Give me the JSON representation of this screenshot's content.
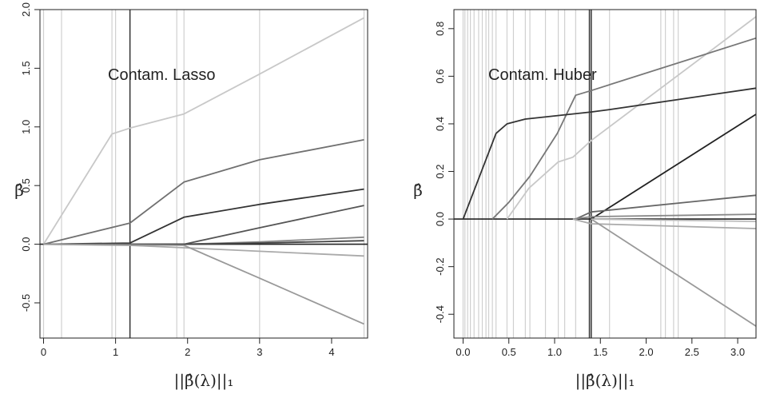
{
  "chart_data": [
    {
      "type": "line",
      "title": "Contam. Lasso",
      "xlabel": "||β̂(λ)||₁",
      "ylabel": "β̂",
      "xlim": [
        -0.05,
        4.5
      ],
      "ylim": [
        -0.8,
        2.0
      ],
      "x_ticks": [
        0,
        1,
        2,
        3,
        4
      ],
      "y_ticks": [
        -0.5,
        0.0,
        0.5,
        1.0,
        1.5,
        2.0
      ],
      "x_tick_labels": [
        "0",
        "1",
        "2",
        "3",
        "4"
      ],
      "y_tick_labels": [
        "-0.5",
        "0.0",
        "0.5",
        "1.0",
        "1.5",
        "2.0"
      ],
      "vlines_light": [
        0,
        0.25,
        0.95,
        1.0,
        1.85,
        1.95,
        3.0,
        4.45
      ],
      "vline_dark": 1.2,
      "series": [
        {
          "color": "#c8c8c8",
          "x": [
            0,
            0.95,
            1.2,
            1.95,
            3.0,
            4.45
          ],
          "y": [
            0,
            0.94,
            0.99,
            1.11,
            1.45,
            1.93
          ]
        },
        {
          "color": "#707070",
          "x": [
            0,
            1.2,
            1.95,
            3.0,
            4.45
          ],
          "y": [
            0,
            0.18,
            0.53,
            0.72,
            0.89
          ]
        },
        {
          "color": "#333333",
          "x": [
            0,
            1.2,
            1.95,
            3.0,
            4.45
          ],
          "y": [
            0,
            0.01,
            0.23,
            0.34,
            0.47
          ]
        },
        {
          "color": "#555555",
          "x": [
            0,
            1.95,
            3.0,
            4.45
          ],
          "y": [
            0,
            0.0,
            0.14,
            0.33
          ]
        },
        {
          "color": "#888888",
          "x": [
            0,
            1.95,
            3.0,
            4.45
          ],
          "y": [
            0,
            0.0,
            0.02,
            0.06
          ]
        },
        {
          "color": "#444444",
          "x": [
            0,
            1.95,
            3.0,
            4.45
          ],
          "y": [
            0,
            0.0,
            0.01,
            0.03
          ]
        },
        {
          "color": "#aaaaaa",
          "x": [
            0,
            1.2,
            1.95,
            3.0,
            4.45
          ],
          "y": [
            0,
            -0.01,
            -0.03,
            -0.06,
            -0.1
          ]
        },
        {
          "color": "#999999",
          "x": [
            0,
            1.95,
            3.0,
            4.45
          ],
          "y": [
            0,
            -0.01,
            -0.29,
            -0.68
          ]
        }
      ]
    },
    {
      "type": "line",
      "title": "Contam. Huber",
      "xlabel": "||β̂(λ)||₁",
      "ylabel": "β̂",
      "xlim": [
        -0.1,
        3.2
      ],
      "ylim": [
        -0.5,
        0.88
      ],
      "x_ticks": [
        0.0,
        0.5,
        1.0,
        1.5,
        2.0,
        2.5,
        3.0
      ],
      "y_ticks": [
        -0.4,
        -0.2,
        0.0,
        0.2,
        0.4,
        0.6,
        0.8
      ],
      "x_tick_labels": [
        "0.0",
        "0.5",
        "1.0",
        "1.5",
        "2.0",
        "2.5",
        "3.0"
      ],
      "y_tick_labels": [
        "-0.4",
        "-0.2",
        "0.0",
        "0.2",
        "0.4",
        "0.6",
        "0.8"
      ],
      "vlines_light": [
        0.0,
        0.02,
        0.05,
        0.08,
        0.12,
        0.17,
        0.21,
        0.25,
        0.28,
        0.32,
        0.36,
        0.48,
        0.55,
        0.68,
        0.73,
        0.9,
        1.04,
        1.11,
        1.23,
        1.6,
        2.16,
        2.21,
        2.3,
        2.35,
        2.86,
        3.2
      ],
      "vlines_dark": [
        1.38,
        1.4
      ],
      "series": [
        {
          "color": "#c8c8c8",
          "x": [
            0.48,
            0.72,
            1.04,
            1.2,
            1.4,
            3.2
          ],
          "y": [
            0.0,
            0.13,
            0.24,
            0.26,
            0.33,
            0.85
          ]
        },
        {
          "color": "#777777",
          "x": [
            0.32,
            0.5,
            0.73,
            1.03,
            1.23,
            1.4,
            3.2
          ],
          "y": [
            0.0,
            0.07,
            0.18,
            0.36,
            0.52,
            0.54,
            0.76
          ]
        },
        {
          "color": "#333333",
          "x": [
            0.0,
            0.36,
            0.48,
            0.68,
            1.4,
            1.6,
            3.2
          ],
          "y": [
            0.0,
            0.36,
            0.4,
            0.42,
            0.45,
            0.46,
            0.55
          ]
        },
        {
          "color": "#222222",
          "x": [
            1.4,
            3.2
          ],
          "y": [
            0.0,
            0.44
          ]
        },
        {
          "color": "#666666",
          "x": [
            1.23,
            1.4,
            3.2
          ],
          "y": [
            0.0,
            0.03,
            0.1
          ]
        },
        {
          "color": "#888888",
          "x": [
            1.2,
            1.4,
            3.2
          ],
          "y": [
            0.0,
            0.01,
            0.02
          ]
        },
        {
          "color": "#aaaaaa",
          "x": [
            1.2,
            1.4,
            3.2
          ],
          "y": [
            0.0,
            -0.02,
            -0.04
          ]
        },
        {
          "color": "#999999",
          "x": [
            1.4,
            3.2
          ],
          "y": [
            0.0,
            -0.45
          ]
        },
        {
          "color": "#bbbbbb",
          "x": [
            1.4,
            3.2
          ],
          "y": [
            0.0,
            -0.01
          ]
        }
      ]
    }
  ]
}
